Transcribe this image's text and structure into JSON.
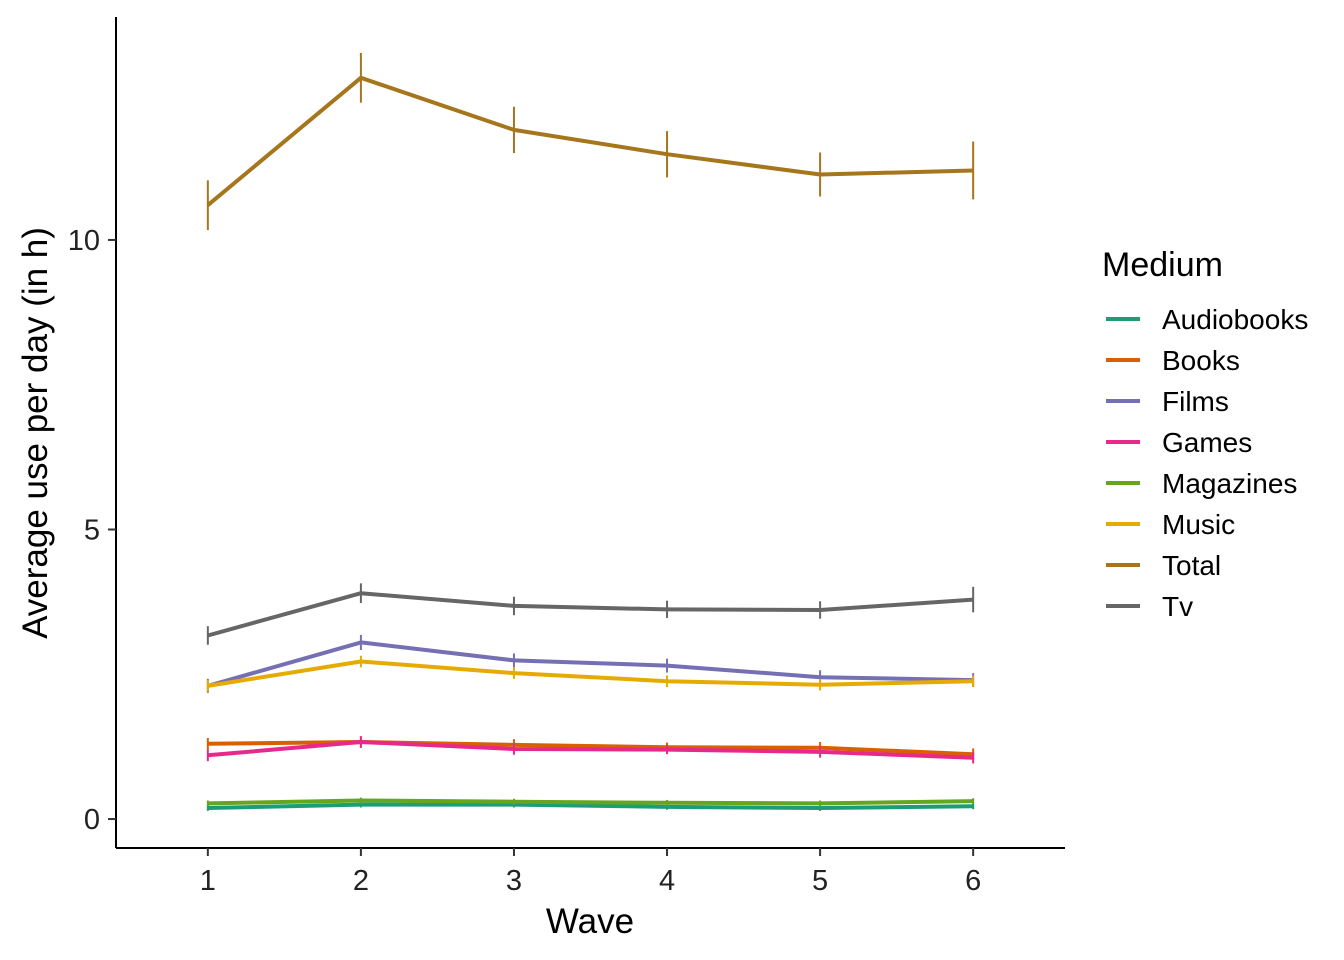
{
  "chart_data": {
    "type": "line",
    "xlabel": "Wave",
    "ylabel": "Average use per day (in h)",
    "x": [
      1,
      2,
      3,
      4,
      5,
      6
    ],
    "xticks": [
      "1",
      "2",
      "3",
      "4",
      "5",
      "6"
    ],
    "xlim": [
      0.4,
      6.6
    ],
    "ylim": [
      -0.5,
      13.85
    ],
    "yticks": [
      0,
      5,
      10
    ],
    "ytick_labels": [
      "0",
      "5",
      "10"
    ],
    "grid": false,
    "error_bars": true,
    "legend": {
      "title": "Medium",
      "placement": "right"
    },
    "series": [
      {
        "name": "Audiobooks",
        "color": "#1B9E77",
        "values": [
          0.19,
          0.25,
          0.25,
          0.21,
          0.19,
          0.22
        ],
        "errors": [
          0.05,
          0.05,
          0.05,
          0.05,
          0.05,
          0.05
        ]
      },
      {
        "name": "Books",
        "color": "#D95F02",
        "values": [
          1.3,
          1.33,
          1.28,
          1.24,
          1.23,
          1.12
        ],
        "errors": [
          0.1,
          0.1,
          0.1,
          0.08,
          0.1,
          0.1
        ]
      },
      {
        "name": "Films",
        "color": "#7570B3",
        "values": [
          2.3,
          3.05,
          2.74,
          2.65,
          2.45,
          2.4
        ],
        "errors": [
          0.12,
          0.13,
          0.12,
          0.12,
          0.12,
          0.12
        ]
      },
      {
        "name": "Games",
        "color": "#E7298A",
        "values": [
          1.1,
          1.33,
          1.21,
          1.2,
          1.16,
          1.06
        ],
        "errors": [
          0.1,
          0.1,
          0.1,
          0.08,
          0.1,
          0.1
        ]
      },
      {
        "name": "Magazines",
        "color": "#66A61E",
        "values": [
          0.27,
          0.32,
          0.3,
          0.28,
          0.27,
          0.31
        ],
        "errors": [
          0.05,
          0.05,
          0.05,
          0.05,
          0.05,
          0.05
        ]
      },
      {
        "name": "Music",
        "color": "#E6AB02",
        "values": [
          2.3,
          2.72,
          2.52,
          2.38,
          2.32,
          2.38
        ],
        "errors": [
          0.1,
          0.1,
          0.1,
          0.1,
          0.1,
          0.1
        ]
      },
      {
        "name": "Total",
        "color": "#A6761D",
        "values": [
          10.6,
          12.8,
          11.9,
          11.48,
          11.13,
          11.2
        ],
        "errors": [
          0.43,
          0.43,
          0.4,
          0.4,
          0.38,
          0.5
        ]
      },
      {
        "name": "Tv",
        "color": "#666666",
        "values": [
          3.17,
          3.9,
          3.68,
          3.62,
          3.61,
          3.79
        ],
        "errors": [
          0.16,
          0.17,
          0.16,
          0.15,
          0.15,
          0.22
        ]
      }
    ]
  }
}
